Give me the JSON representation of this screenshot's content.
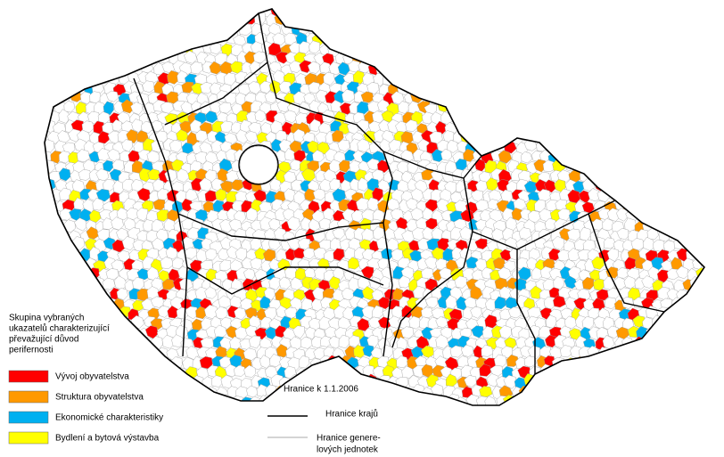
{
  "legend": {
    "title_lines": [
      "Skupina vybraných",
      "ukazatelů charakterizující",
      "převažující důvod",
      "perifernosti"
    ],
    "items": [
      {
        "label": "Vývoj obyvatelstva",
        "color": "#ff0000"
      },
      {
        "label": "Struktura obyvatelstva",
        "color": "#ff9900"
      },
      {
        "label": "Ekonomické charakteristiky",
        "color": "#00b0f0"
      },
      {
        "label": "Bydlení a bytová výstavba",
        "color": "#ffff00"
      }
    ]
  },
  "boundaries": {
    "title": "Hranice k 1.1.2006",
    "regions": "Hranice krajů",
    "units_lines": [
      "Hranice genere-",
      "lových jednotek"
    ]
  }
}
